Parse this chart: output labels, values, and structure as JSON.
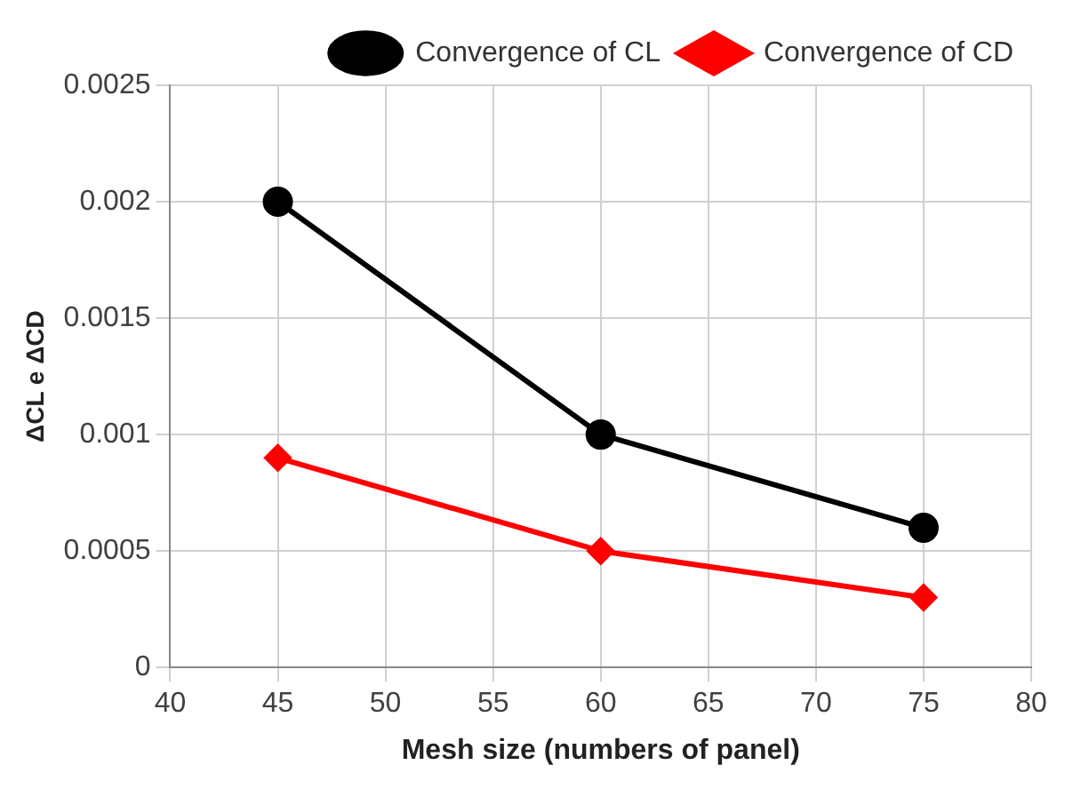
{
  "chart_data": {
    "type": "line",
    "xlabel": "Mesh size (numbers of panel)",
    "ylabel": "ΔCL e ΔCD",
    "x": [
      45,
      60,
      75
    ],
    "series": [
      {
        "name": "Convergence of CL",
        "color": "#000000",
        "marker": "circle",
        "values": [
          0.002,
          0.001,
          0.0006
        ]
      },
      {
        "name": "Convergence of CD",
        "color": "#ff0000",
        "marker": "diamond",
        "values": [
          0.0009,
          0.0005,
          0.0003
        ]
      }
    ],
    "xlim": [
      40,
      80
    ],
    "xticks": [
      40,
      45,
      50,
      55,
      60,
      65,
      70,
      75,
      80
    ],
    "ylim": [
      0,
      0.0025
    ],
    "yticks": [
      0,
      0.0005,
      0.001,
      0.0015,
      0.002,
      0.0025
    ],
    "grid": true,
    "legend": "top right",
    "line_style": "solid"
  }
}
